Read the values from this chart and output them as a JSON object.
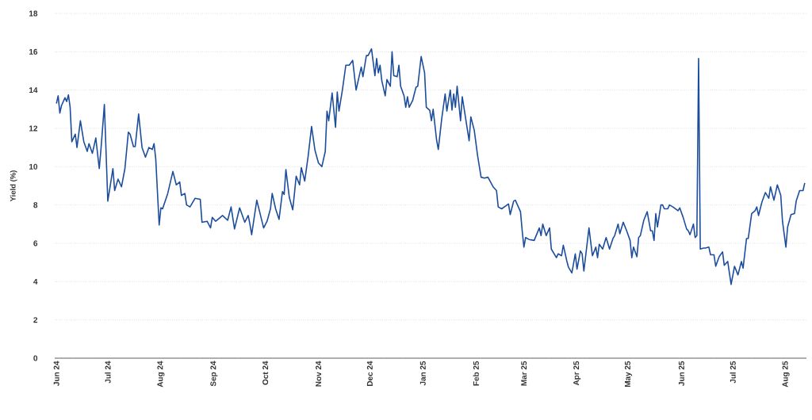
{
  "chart_data": {
    "type": "line",
    "ylabel": "Yield (%)",
    "x": [
      "2024-06-01",
      "2024-06-02",
      "2024-06-03",
      "2024-06-04",
      "2024-06-06",
      "2024-06-07",
      "2024-06-08",
      "2024-06-09",
      "2024-06-10",
      "2024-06-12",
      "2024-06-13",
      "2024-06-15",
      "2024-06-17",
      "2024-06-19",
      "2024-06-20",
      "2024-06-22",
      "2024-06-24",
      "2024-06-26",
      "2024-06-27",
      "2024-06-29",
      "2024-07-01",
      "2024-07-04",
      "2024-07-05",
      "2024-07-07",
      "2024-07-09",
      "2024-07-11",
      "2024-07-13",
      "2024-07-14",
      "2024-07-16",
      "2024-07-17",
      "2024-07-19",
      "2024-07-21",
      "2024-07-23",
      "2024-07-25",
      "2024-07-27",
      "2024-07-28",
      "2024-07-29",
      "2024-07-31",
      "2024-08-01",
      "2024-08-02",
      "2024-08-05",
      "2024-08-08",
      "2024-08-10",
      "2024-08-12",
      "2024-08-13",
      "2024-08-15",
      "2024-08-16",
      "2024-08-18",
      "2024-08-21",
      "2024-08-24",
      "2024-08-25",
      "2024-08-28",
      "2024-08-30",
      "2024-08-31",
      "2024-09-02",
      "2024-09-04",
      "2024-09-06",
      "2024-09-09",
      "2024-09-11",
      "2024-09-13",
      "2024-09-16",
      "2024-09-19",
      "2024-09-21",
      "2024-09-22",
      "2024-09-23",
      "2024-09-25",
      "2024-09-26",
      "2024-09-30",
      "2024-10-02",
      "2024-10-04",
      "2024-10-05",
      "2024-10-07",
      "2024-10-09",
      "2024-10-11",
      "2024-10-12",
      "2024-10-13",
      "2024-10-15",
      "2024-10-17",
      "2024-10-18",
      "2024-10-19",
      "2024-10-21",
      "2024-10-22",
      "2024-10-24",
      "2024-10-26",
      "2024-10-28",
      "2024-10-30",
      "2024-11-01",
      "2024-11-03",
      "2024-11-05",
      "2024-11-06",
      "2024-11-07",
      "2024-11-09",
      "2024-11-11",
      "2024-11-12",
      "2024-11-13",
      "2024-11-15",
      "2024-11-17",
      "2024-11-19",
      "2024-11-21",
      "2024-11-23",
      "2024-11-26",
      "2024-11-27",
      "2024-11-29",
      "2024-11-30",
      "2024-12-02",
      "2024-12-04",
      "2024-12-05",
      "2024-12-06",
      "2024-12-07",
      "2024-12-08",
      "2024-12-10",
      "2024-12-11",
      "2024-12-13",
      "2024-12-14",
      "2024-12-15",
      "2024-12-17",
      "2024-12-18",
      "2024-12-19",
      "2024-12-21",
      "2024-12-22",
      "2024-12-23",
      "2024-12-24",
      "2024-12-26",
      "2024-12-28",
      "2024-12-29",
      "2024-12-31",
      "2025-01-02",
      "2025-01-03",
      "2025-01-05",
      "2025-01-06",
      "2025-01-07",
      "2025-01-09",
      "2025-01-10",
      "2025-01-12",
      "2025-01-14",
      "2025-01-15",
      "2025-01-17",
      "2025-01-18",
      "2025-01-19",
      "2025-01-20",
      "2025-01-21",
      "2025-01-23",
      "2025-01-24",
      "2025-01-26",
      "2025-01-28",
      "2025-01-29",
      "2025-01-31",
      "2025-02-02",
      "2025-02-04",
      "2025-02-06",
      "2025-02-08",
      "2025-02-11",
      "2025-02-13",
      "2025-02-14",
      "2025-02-16",
      "2025-02-20",
      "2025-02-21",
      "2025-02-23",
      "2025-02-24",
      "2025-02-27",
      "2025-02-28",
      "2025-03-01",
      "2025-03-02",
      "2025-03-04",
      "2025-03-07",
      "2025-03-10",
      "2025-03-11",
      "2025-03-12",
      "2025-03-14",
      "2025-03-16",
      "2025-03-17",
      "2025-03-20",
      "2025-03-21",
      "2025-03-23",
      "2025-03-24",
      "2025-03-26",
      "2025-03-27",
      "2025-03-29",
      "2025-03-31",
      "2025-04-01",
      "2025-04-03",
      "2025-04-04",
      "2025-04-05",
      "2025-04-08",
      "2025-04-10",
      "2025-04-12",
      "2025-04-13",
      "2025-04-14",
      "2025-04-16",
      "2025-04-18",
      "2025-04-20",
      "2025-04-22",
      "2025-04-23",
      "2025-04-25",
      "2025-04-26",
      "2025-04-28",
      "2025-04-30",
      "2025-05-02",
      "2025-05-03",
      "2025-05-04",
      "2025-05-06",
      "2025-05-07",
      "2025-05-08",
      "2025-05-10",
      "2025-05-12",
      "2025-05-14",
      "2025-05-15",
      "2025-05-16",
      "2025-05-17",
      "2025-05-18",
      "2025-05-20",
      "2025-05-21",
      "2025-05-22",
      "2025-05-24",
      "2025-05-25",
      "2025-05-27",
      "2025-05-30",
      "2025-05-31",
      "2025-06-02",
      "2025-06-04",
      "2025-06-05",
      "2025-06-06",
      "2025-06-08",
      "2025-06-09",
      "2025-06-10",
      "2025-06-11",
      "2025-06-12",
      "2025-06-14",
      "2025-06-15",
      "2025-06-17",
      "2025-06-18",
      "2025-06-20",
      "2025-06-21",
      "2025-06-23",
      "2025-06-25",
      "2025-06-26",
      "2025-06-28",
      "2025-06-30",
      "2025-07-02",
      "2025-07-04",
      "2025-07-06",
      "2025-07-07",
      "2025-07-09",
      "2025-07-10",
      "2025-07-12",
      "2025-07-14",
      "2025-07-15",
      "2025-07-16",
      "2025-07-18",
      "2025-07-20",
      "2025-07-22",
      "2025-07-23",
      "2025-07-25",
      "2025-07-27",
      "2025-07-29",
      "2025-07-30",
      "2025-08-01",
      "2025-08-02",
      "2025-08-04",
      "2025-08-06",
      "2025-08-07",
      "2025-08-09",
      "2025-08-11",
      "2025-08-12"
    ],
    "values": [
      13.3,
      13.7,
      12.8,
      13.2,
      13.6,
      13.4,
      13.75,
      13.1,
      11.3,
      11.7,
      11.0,
      12.4,
      11.3,
      10.8,
      11.2,
      10.7,
      11.5,
      9.9,
      10.9,
      13.25,
      8.2,
      9.9,
      8.75,
      9.35,
      8.95,
      9.9,
      11.8,
      11.7,
      11.05,
      11.05,
      12.75,
      11.0,
      10.5,
      11.0,
      10.9,
      11.2,
      10.4,
      6.95,
      7.85,
      7.8,
      8.6,
      9.75,
      9.05,
      9.2,
      8.5,
      8.6,
      8.0,
      7.9,
      8.35,
      8.3,
      7.1,
      7.15,
      6.8,
      7.35,
      7.15,
      7.3,
      7.45,
      7.2,
      7.9,
      6.75,
      7.85,
      7.1,
      7.45,
      7.0,
      6.45,
      7.65,
      8.25,
      6.8,
      7.15,
      7.8,
      8.6,
      7.8,
      7.25,
      8.7,
      8.55,
      9.85,
      8.4,
      7.75,
      8.6,
      9.5,
      9.05,
      9.95,
      9.25,
      10.55,
      12.1,
      10.85,
      10.2,
      10.0,
      10.8,
      12.9,
      12.4,
      13.85,
      12.05,
      13.9,
      12.9,
      14.0,
      15.3,
      15.3,
      15.55,
      14.0,
      15.2,
      14.7,
      15.8,
      15.8,
      16.15,
      14.75,
      15.65,
      14.9,
      15.3,
      14.5,
      13.7,
      14.55,
      14.2,
      16.0,
      14.75,
      14.7,
      15.3,
      14.2,
      13.7,
      13.1,
      13.65,
      13.1,
      13.45,
      14.15,
      14.2,
      15.75,
      14.9,
      13.1,
      12.95,
      12.4,
      13.0,
      11.4,
      10.9,
      12.5,
      13.8,
      12.9,
      14.0,
      12.95,
      13.8,
      13.1,
      14.2,
      12.4,
      13.65,
      12.5,
      11.35,
      12.6,
      11.9,
      10.55,
      9.45,
      9.4,
      9.45,
      8.95,
      8.75,
      7.9,
      7.8,
      8.05,
      7.5,
      8.2,
      8.25,
      7.65,
      6.65,
      5.8,
      6.3,
      6.2,
      6.15,
      6.8,
      6.4,
      7.0,
      6.4,
      6.8,
      5.7,
      5.25,
      5.45,
      5.35,
      5.9,
      5.1,
      4.75,
      4.45,
      5.45,
      4.65,
      5.6,
      5.45,
      4.55,
      6.8,
      5.35,
      5.8,
      5.25,
      5.95,
      5.7,
      6.3,
      5.7,
      6.25,
      6.4,
      7.0,
      6.5,
      7.1,
      6.65,
      6.15,
      5.25,
      5.8,
      5.3,
      6.3,
      6.4,
      7.2,
      7.65,
      6.65,
      6.65,
      6.15,
      7.55,
      6.85,
      8.0,
      8.0,
      7.8,
      7.8,
      8.0,
      7.9,
      7.7,
      7.85,
      7.35,
      6.75,
      6.65,
      6.45,
      7.0,
      6.3,
      6.4,
      15.65,
      5.7,
      5.75,
      5.75,
      5.8,
      5.4,
      5.4,
      4.8,
      5.3,
      5.55,
      4.85,
      5.05,
      3.85,
      4.8,
      4.35,
      5.05,
      4.7,
      6.25,
      6.25,
      7.55,
      7.7,
      7.9,
      7.45,
      8.15,
      8.65,
      8.35,
      8.95,
      8.25,
      9.05,
      8.5,
      7.15,
      5.8,
      6.85,
      7.5,
      7.55,
      8.2,
      8.75,
      8.75,
      9.15
    ],
    "color": "#1c4d9c",
    "xlim": [
      "2024-05-31",
      "2025-08-13"
    ],
    "xticks": [
      {
        "value": "2024-06-01",
        "label": "Jun 24"
      },
      {
        "value": "2024-07-01",
        "label": "Jul 24"
      },
      {
        "value": "2024-08-01",
        "label": "Aug 24"
      },
      {
        "value": "2024-09-01",
        "label": "Sep 24"
      },
      {
        "value": "2024-10-01",
        "label": "Oct 24"
      },
      {
        "value": "2024-11-01",
        "label": "Nov 24"
      },
      {
        "value": "2024-12-01",
        "label": "Dec 24"
      },
      {
        "value": "2025-01-01",
        "label": "Jan 25"
      },
      {
        "value": "2025-02-01",
        "label": "Feb 25"
      },
      {
        "value": "2025-03-01",
        "label": "Mar 25"
      },
      {
        "value": "2025-04-01",
        "label": "Apr 25"
      },
      {
        "value": "2025-05-01",
        "label": "May 25"
      },
      {
        "value": "2025-06-01",
        "label": "Jun 25"
      },
      {
        "value": "2025-07-01",
        "label": "Jul 25"
      },
      {
        "value": "2025-08-01",
        "label": "Aug 25"
      }
    ],
    "ylim": [
      0,
      18
    ],
    "yticks": [
      0,
      2,
      4,
      6,
      8,
      10,
      12,
      14,
      16,
      18
    ],
    "grid": "y",
    "marker": "none",
    "line_style": "solid"
  }
}
